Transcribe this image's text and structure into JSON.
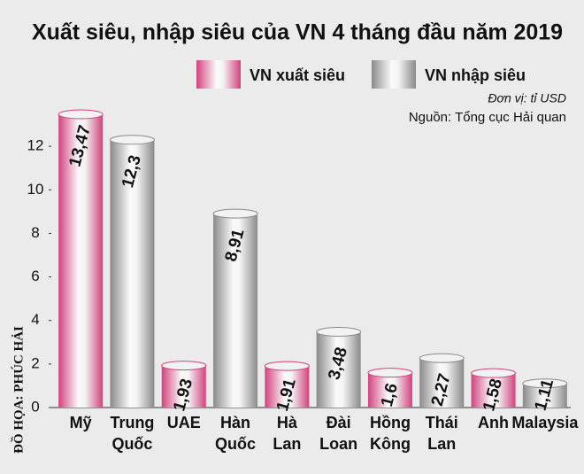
{
  "chart_data": {
    "type": "bar",
    "title": "Xuất siêu, nhập siêu của VN 4 tháng đầu năm 2019",
    "unit_note": "Đơn vị: tỉ USD",
    "source": "Nguồn: Tổng cục Hải quan",
    "credit": "ĐỒ HỌA: PHÚC HẢI",
    "categories": [
      "Mỹ",
      "Trung Quốc",
      "UAE",
      "Hàn Quốc",
      "Hà Lan",
      "Đài Loan",
      "Hồng Kông",
      "Thái Lan",
      "Anh",
      "Malaysia"
    ],
    "series": [
      {
        "name": "VN xuất siêu",
        "color": "#d2427e",
        "values": [
          13.47,
          null,
          1.93,
          null,
          1.91,
          null,
          1.6,
          null,
          1.58,
          null
        ],
        "value_labels": [
          "13,47",
          null,
          "1,93",
          null,
          "1,91",
          null,
          "1,6",
          null,
          "1,58",
          null
        ]
      },
      {
        "name": "VN nhập siêu",
        "color": "#8a8a8a",
        "values": [
          null,
          12.3,
          null,
          8.91,
          null,
          3.48,
          null,
          2.27,
          null,
          1.11
        ],
        "value_labels": [
          null,
          "12,3",
          null,
          "8,91",
          null,
          "3,48",
          null,
          "2,27",
          null,
          "1,11"
        ]
      }
    ],
    "ylim": [
      0,
      14
    ],
    "yticks": [
      0,
      2,
      4,
      6,
      8,
      10,
      12
    ],
    "grid": false
  }
}
